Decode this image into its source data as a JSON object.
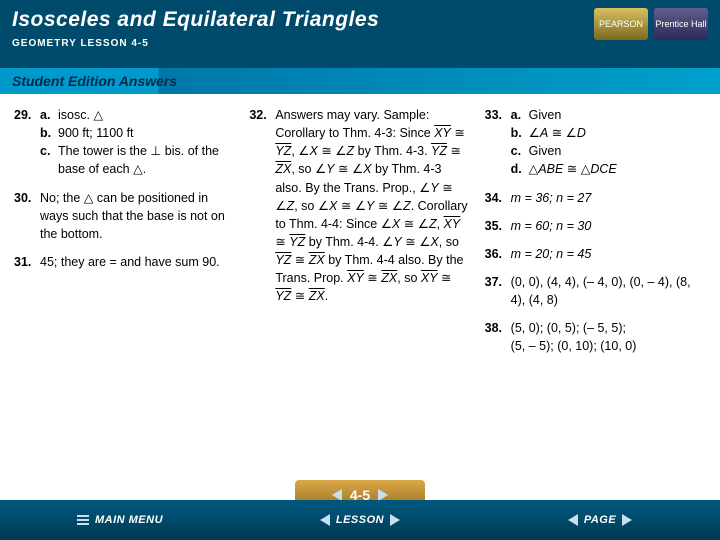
{
  "header": {
    "title": "Isosceles and Equilateral Triangles",
    "subtitle": "GEOMETRY  LESSON 4-5",
    "logo1": "PEARSON",
    "logo2": "Prentice Hall"
  },
  "banner": {
    "text": "Student Edition Answers"
  },
  "col1": {
    "n29": "29.",
    "a29a_lbl": "a.",
    "a29a": "isosc. ",
    "a29b_lbl": "b.",
    "a29b": "900 ft; 1100 ft",
    "a29c_lbl": "c.",
    "a29c_1": "The tower is the ",
    "a29c_2": " bis. of the base of each ",
    "a29c_3": ".",
    "n30": "30.",
    "a30_1": "No; the ",
    "a30_2": " can be positioned in ways such that the base is not on the bottom.",
    "n31": "31.",
    "a31": "45; they are = and have sum 90."
  },
  "col2": {
    "n32": "32.",
    "p1": "Answers may vary. Sample: Corollary to Thm. 4-3: Since ",
    "xy": "XY",
    "yz": "YZ",
    "zx": "ZX",
    "p2": ", ",
    "p2b": " by Thm. 4-3. ",
    "p3": ", so ",
    "p4": " by Thm. 4-3 also. By the Trans. Prop., ",
    "p5": ", so ",
    "p6": ". Corollary to Thm. 4-4: Since ",
    "p7": " by Thm. 4-4. ",
    "p8": " by Thm. 4-4 also. By the Trans. Prop. ",
    "p9": "."
  },
  "col3": {
    "n33": "33.",
    "a33a_lbl": "a.",
    "a33a": "Given",
    "a33b_lbl": "b.",
    "a33c_lbl": "c.",
    "a33c": "Given",
    "a33d_lbl": "d.",
    "abe": "ABE",
    "dce": "DCE",
    "A": "A",
    "D": "D",
    "n34": "34.",
    "a34": "m = 36; n = 27",
    "n35": "35.",
    "a35": "m = 60; n = 30",
    "n36": "36.",
    "a36": "m = 20; n = 45",
    "n37": "37.",
    "a37": "(0, 0), (4, 4), (– 4, 0), (0, – 4), (8, 4), (4, 8)",
    "n38": "38.",
    "a38a": "(5, 0); (0, 5); (– 5, 5);",
    "a38b": "(5, – 5); (0, 10); (10, 0)"
  },
  "footer": {
    "menu": "MAIN MENU",
    "lesson": "LESSON",
    "page": "PAGE",
    "tab": "4-5"
  },
  "colors": {
    "header_bg": "#004b6b",
    "banner_start": "#0099cc",
    "footer_top": "#00597f",
    "tab": "#d9a94a",
    "text": "#000000"
  }
}
